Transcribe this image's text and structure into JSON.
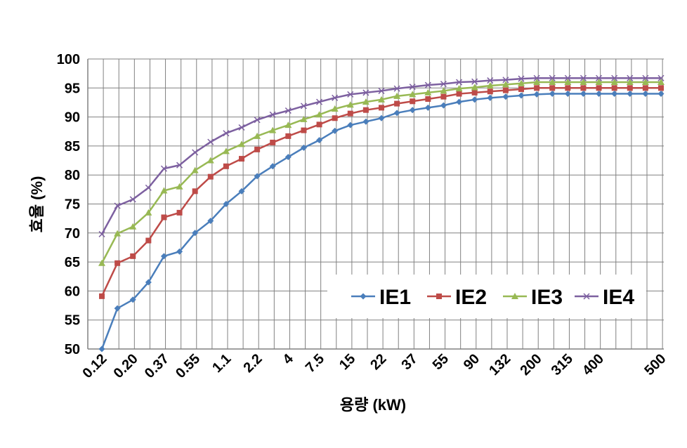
{
  "chart_data": {
    "type": "line",
    "title": "",
    "xlabel": "용량 (kW)",
    "ylabel": "효율 (%)",
    "ylim": [
      50,
      100
    ],
    "yticks": [
      50,
      55,
      60,
      65,
      70,
      75,
      80,
      85,
      90,
      95,
      100
    ],
    "x_tick_labels": [
      "0.12",
      "0.20",
      "0.37",
      "0.55",
      "1.1",
      "2.2",
      "4",
      "7.5",
      "15",
      "22",
      "37",
      "55",
      "90",
      "132",
      "200",
      "315",
      "400",
      "500"
    ],
    "grid": true,
    "legend_position": "bottom-right",
    "series": [
      {
        "name": "IE1",
        "color": "#4a7ebb",
        "marker": "diamond",
        "values": [
          50.0,
          57.0,
          58.5,
          61.5,
          66.0,
          66.8,
          70.0,
          72.1,
          75.0,
          77.2,
          79.8,
          81.5,
          83.1,
          84.7,
          86.0,
          87.6,
          88.6,
          89.2,
          89.8,
          90.7,
          91.2,
          91.6,
          92.0,
          92.6,
          93.0,
          93.3,
          93.5,
          93.7,
          93.9,
          94.0,
          94.0,
          94.0,
          94.0,
          94.0,
          94.0,
          94.0,
          94.0
        ]
      },
      {
        "name": "IE2",
        "color": "#be4b48",
        "marker": "square",
        "values": [
          59.1,
          64.8,
          66.0,
          68.7,
          72.7,
          73.5,
          77.2,
          79.7,
          81.5,
          82.8,
          84.4,
          85.6,
          86.7,
          87.7,
          88.7,
          89.8,
          90.6,
          91.2,
          91.6,
          92.3,
          92.7,
          93.1,
          93.5,
          94.0,
          94.2,
          94.4,
          94.6,
          94.8,
          95.0,
          95.0,
          95.0,
          95.0,
          95.0,
          95.0,
          95.0,
          95.0,
          95.0
        ]
      },
      {
        "name": "IE3",
        "color": "#98b954",
        "marker": "triangle",
        "values": [
          64.8,
          69.9,
          71.1,
          73.5,
          77.3,
          78.0,
          80.8,
          82.5,
          84.1,
          85.3,
          86.7,
          87.7,
          88.6,
          89.6,
          90.4,
          91.4,
          92.1,
          92.6,
          93.0,
          93.6,
          93.9,
          94.2,
          94.5,
          94.9,
          95.1,
          95.4,
          95.6,
          95.8,
          96.0,
          96.0,
          96.0,
          96.0,
          96.0,
          96.0,
          96.0,
          96.0,
          96.0
        ]
      },
      {
        "name": "IE4",
        "color": "#7d60a0",
        "marker": "x",
        "values": [
          69.8,
          74.7,
          75.8,
          77.8,
          81.1,
          81.7,
          83.9,
          85.7,
          87.2,
          88.2,
          89.5,
          90.4,
          91.1,
          91.9,
          92.6,
          93.3,
          93.9,
          94.2,
          94.5,
          94.9,
          95.2,
          95.5,
          95.7,
          96.0,
          96.1,
          96.3,
          96.4,
          96.6,
          96.7,
          96.7,
          96.7,
          96.7,
          96.7,
          96.7,
          96.7,
          96.7,
          96.7
        ]
      }
    ]
  }
}
